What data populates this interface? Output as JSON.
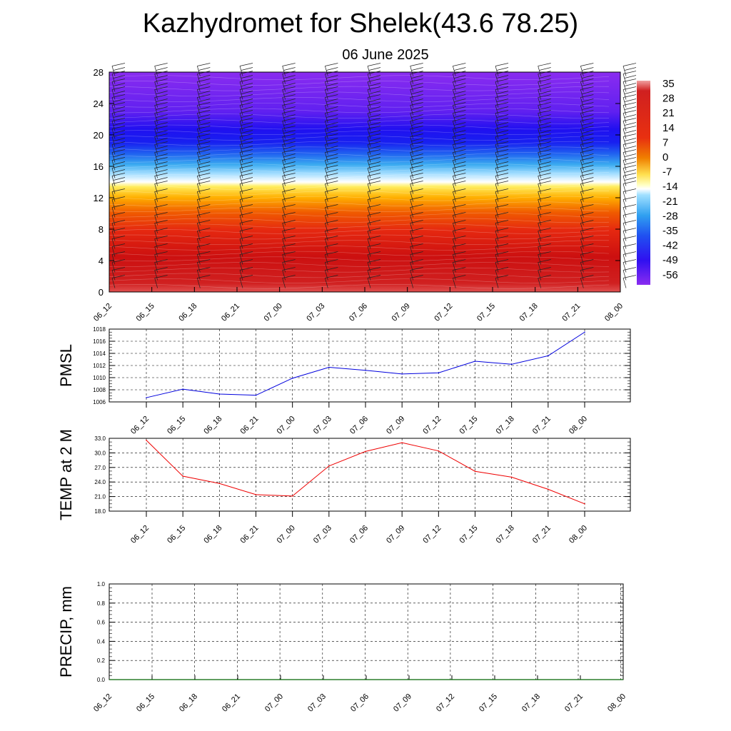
{
  "header": {
    "title": "Kazhydromet for Shelek(43.6 78.25)",
    "subtitle": "06 June 2025"
  },
  "time_labels": [
    "06_12",
    "06_15",
    "06_18",
    "06_21",
    "07_00",
    "07_03",
    "07_06",
    "07_09",
    "07_12",
    "07_15",
    "07_18",
    "07_21",
    "08_00"
  ],
  "colors": {
    "pmsl_line": "#0000dd",
    "temp_line": "#ee0000",
    "precip_line": "#006400"
  },
  "chart_data": [
    {
      "type": "heatmap",
      "title": "",
      "xlabel": "",
      "ylabel": "",
      "x": [
        "06_12",
        "06_15",
        "06_18",
        "06_21",
        "07_00",
        "07_03",
        "07_06",
        "07_09",
        "07_12",
        "07_15",
        "07_18",
        "07_21",
        "08_00"
      ],
      "y_ticks": [
        0,
        4,
        8,
        12,
        16,
        20,
        24,
        28
      ],
      "ylim": [
        0,
        28
      ],
      "colorbar_labels": [
        35,
        28,
        21,
        14,
        7,
        0,
        -7,
        -14,
        -21,
        -28,
        -35,
        -42,
        -49,
        -56
      ],
      "approx_temperature_by_height": [
        {
          "y": 0,
          "value": 30
        },
        {
          "y": 4,
          "value": 24
        },
        {
          "y": 8,
          "value": 14
        },
        {
          "y": 12,
          "value": 0
        },
        {
          "y": 14,
          "value": -14
        },
        {
          "y": 16,
          "value": -35
        },
        {
          "y": 18,
          "value": -49
        },
        {
          "y": 20,
          "value": -56
        },
        {
          "y": 24,
          "value": -60
        },
        {
          "y": 28,
          "value": -58
        }
      ],
      "overlay": "wind barbs"
    },
    {
      "type": "line",
      "ylabel": "PMSL",
      "x": [
        "06_12",
        "06_15",
        "06_18",
        "06_21",
        "07_00",
        "07_03",
        "07_06",
        "07_09",
        "07_12",
        "07_15",
        "07_18",
        "07_21",
        "08_00"
      ],
      "ylim": [
        1006,
        1018
      ],
      "y_ticks": [
        1006,
        1008,
        1010,
        1012,
        1014,
        1016,
        1018
      ],
      "grid": true,
      "series": [
        {
          "values": [
            1006.7,
            1008.1,
            1007.3,
            1007.1,
            1009.9,
            1011.7,
            1011.2,
            1010.6,
            1010.8,
            1012.7,
            1012.2,
            1013.6,
            1017.5
          ]
        }
      ]
    },
    {
      "type": "line",
      "ylabel": "TEMP at 2 M",
      "x": [
        "06_12",
        "06_15",
        "06_18",
        "06_21",
        "07_00",
        "07_03",
        "07_06",
        "07_09",
        "07_12",
        "07_15",
        "07_18",
        "07_21",
        "08_00"
      ],
      "ylim": [
        18.0,
        33.0
      ],
      "y_ticks": [
        "18.0",
        "21.0",
        "24.0",
        "27.0",
        "30.0",
        "33.0"
      ],
      "grid": true,
      "series": [
        {
          "values": [
            32.6,
            25.2,
            23.7,
            21.4,
            21.1,
            27.3,
            30.3,
            32.1,
            30.4,
            26.2,
            25.0,
            22.5,
            19.5
          ]
        }
      ]
    },
    {
      "type": "line",
      "ylabel": "PRECIP, mm",
      "x": [
        "06_12",
        "06_15",
        "06_18",
        "06_21",
        "07_00",
        "07_03",
        "07_06",
        "07_09",
        "07_12",
        "07_15",
        "07_18",
        "07_21",
        "08_00"
      ],
      "ylim": [
        0.0,
        1.0
      ],
      "y_ticks": [
        "0.0",
        "0.2",
        "0.4",
        "0.6",
        "0.8",
        "1.0"
      ],
      "grid": true,
      "series": [
        {
          "values": [
            0,
            0,
            0,
            0,
            0,
            0,
            0,
            0,
            0,
            0,
            0,
            0,
            0
          ]
        }
      ]
    }
  ]
}
